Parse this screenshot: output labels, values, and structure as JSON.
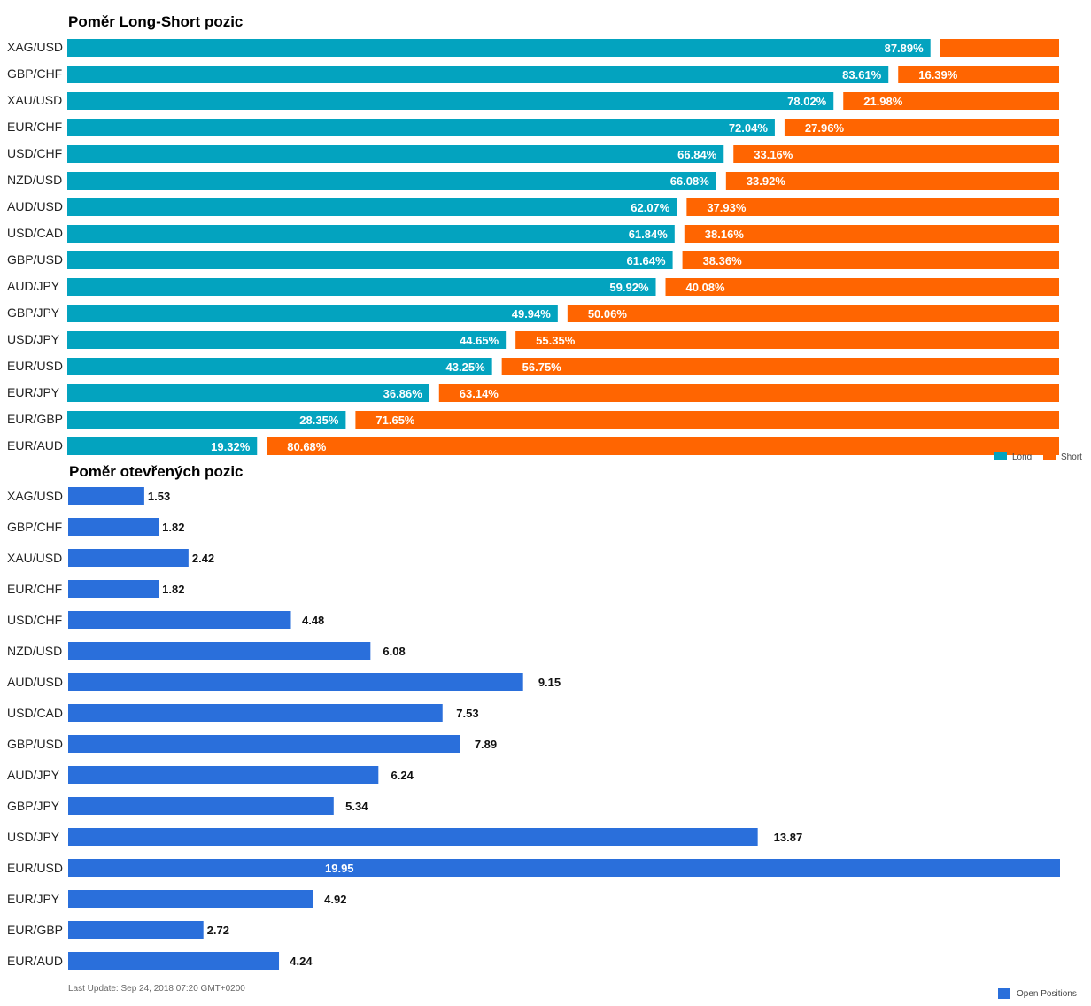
{
  "chart_data": [
    {
      "type": "bar",
      "orientation": "horizontal",
      "stacked": true,
      "title": "Poměr Long-Short pozic",
      "categories": [
        "XAG/USD",
        "GBP/CHF",
        "XAU/USD",
        "EUR/CHF",
        "USD/CHF",
        "NZD/USD",
        "AUD/USD",
        "USD/CAD",
        "GBP/USD",
        "AUD/JPY",
        "GBP/JPY",
        "USD/JPY",
        "EUR/USD",
        "EUR/JPY",
        "EUR/GBP",
        "EUR/AUD"
      ],
      "series": [
        {
          "name": "Long",
          "color": "#03a3bf",
          "values": [
            87.89,
            83.61,
            78.02,
            72.04,
            66.84,
            66.08,
            62.07,
            61.84,
            61.64,
            59.92,
            49.94,
            44.65,
            43.25,
            36.86,
            28.35,
            19.32
          ]
        },
        {
          "name": "Short",
          "color": "#ff6501",
          "values": [
            12.11,
            16.39,
            21.98,
            27.96,
            33.16,
            33.92,
            37.93,
            38.16,
            38.36,
            40.08,
            50.06,
            55.35,
            56.75,
            63.14,
            71.65,
            80.68
          ]
        }
      ],
      "labels": {
        "Long": [
          "87.89%",
          "83.61%",
          "78.02%",
          "72.04%",
          "66.84%",
          "66.08%",
          "62.07%",
          "61.84%",
          "61.64%",
          "59.92%",
          "49.94%",
          "44.65%",
          "43.25%",
          "36.86%",
          "28.35%",
          "19.32%"
        ],
        "Short": [
          "",
          "16.39%",
          "21.98%",
          "27.96%",
          "33.16%",
          "33.92%",
          "37.93%",
          "38.16%",
          "38.36%",
          "40.08%",
          "50.06%",
          "55.35%",
          "56.75%",
          "63.14%",
          "71.65%",
          "80.68%"
        ]
      },
      "xlim": [
        0,
        100
      ],
      "legend": "bottom-right"
    },
    {
      "type": "bar",
      "orientation": "horizontal",
      "title": "Poměr otevřených pozic",
      "categories": [
        "XAG/USD",
        "GBP/CHF",
        "XAU/USD",
        "EUR/CHF",
        "USD/CHF",
        "NZD/USD",
        "AUD/USD",
        "USD/CAD",
        "GBP/USD",
        "AUD/JPY",
        "GBP/JPY",
        "USD/JPY",
        "EUR/USD",
        "EUR/JPY",
        "EUR/GBP",
        "EUR/AUD"
      ],
      "series": [
        {
          "name": "Open Positions",
          "color": "#2a6fdb",
          "values": [
            1.53,
            1.82,
            2.42,
            1.82,
            4.48,
            6.08,
            9.15,
            7.53,
            7.89,
            6.24,
            5.34,
            13.87,
            19.95,
            4.92,
            2.72,
            4.24
          ]
        }
      ],
      "xlim": [
        0,
        19.95
      ],
      "legend": "bottom-right"
    }
  ],
  "footer": "Last Update: Sep 24, 2018 07:20 GMT+0200"
}
